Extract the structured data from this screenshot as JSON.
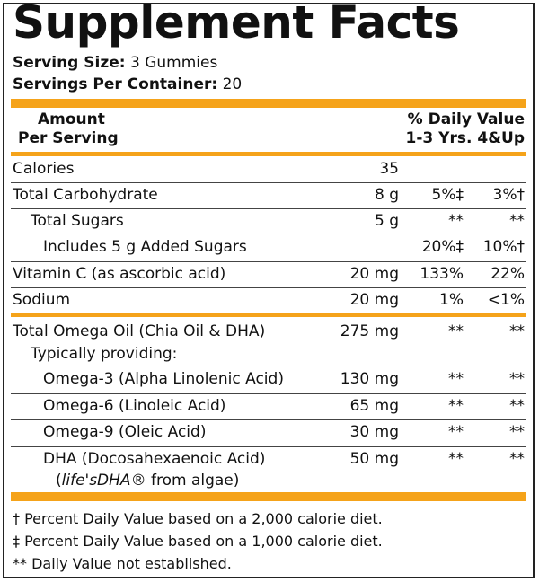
{
  "title": "Supplement Facts",
  "serving_size_label": "Serving Size:",
  "serving_size_value": "3 Gummies",
  "servings_label": "Servings Per Container:",
  "servings_value": "20",
  "header": {
    "amount_line1": "Amount",
    "amount_line2": "Per Serving",
    "dv_line1": "% Daily Value",
    "dv_line2": "1-3 Yrs. 4&Up"
  },
  "rows": [
    {
      "name": "Calories",
      "amount": "35",
      "dv1": "",
      "dv2": ""
    },
    {
      "name": "Total Carbohydrate",
      "amount": "8 g",
      "dv1": "5%‡",
      "dv2": "3%†"
    },
    {
      "name": "Total Sugars",
      "amount": "5 g",
      "dv1": "**",
      "dv2": "**"
    },
    {
      "name": "Includes 5 g Added Sugars",
      "amount": "",
      "dv1": "20%‡",
      "dv2": "10%†"
    },
    {
      "name": "Vitamin C (as ascorbic acid)",
      "amount": "20 mg",
      "dv1": "133%",
      "dv2": "22%"
    },
    {
      "name": "Sodium",
      "amount": "20 mg",
      "dv1": "1%",
      "dv2": "<1%"
    },
    {
      "name": "Total Omega Oil (Chia Oil & DHA)",
      "amount": "275 mg",
      "dv1": "**",
      "dv2": "**"
    },
    {
      "name": "Typically providing:",
      "amount": "",
      "dv1": "",
      "dv2": ""
    },
    {
      "name": "Omega-3 (Alpha Linolenic Acid)",
      "amount": "130 mg",
      "dv1": "**",
      "dv2": "**"
    },
    {
      "name": "Omega-6 (Linoleic Acid)",
      "amount": "65 mg",
      "dv1": "**",
      "dv2": "**"
    },
    {
      "name": "Omega-9 (Oleic Acid)",
      "amount": "30 mg",
      "dv1": "**",
      "dv2": "**"
    },
    {
      "name": "DHA (Docosahexaenoic Acid)",
      "amount": "50 mg",
      "dv1": "**",
      "dv2": "**"
    }
  ],
  "dha_source_italic": "life'sDHA",
  "dha_source_rest": "® from algae)",
  "dha_source_open": "(",
  "footnotes": [
    "† Percent Daily Value based on a 2,000 calorie diet.",
    "‡ Percent Daily Value based on a 1,000 calorie diet.",
    "** Daily Value not established."
  ],
  "colors": {
    "accent_bar": "#f5a31a",
    "border": "#222222"
  }
}
